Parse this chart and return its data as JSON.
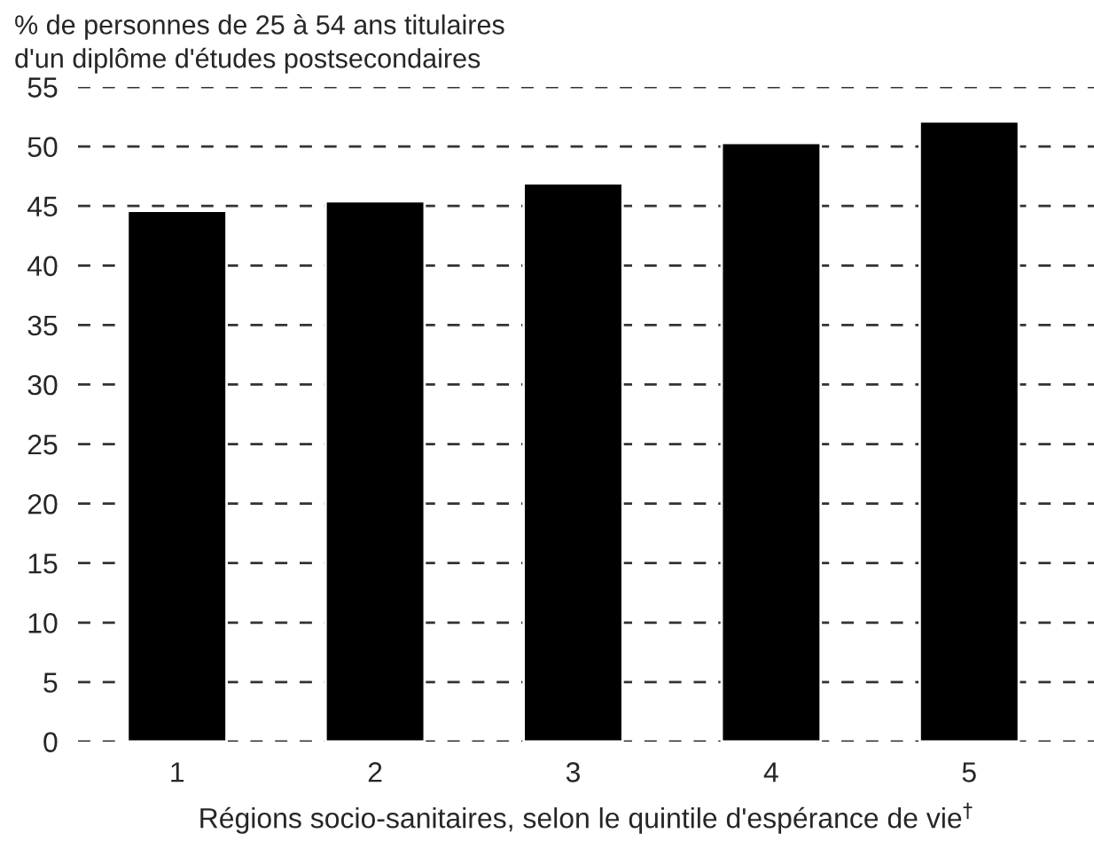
{
  "chart_data": {
    "type": "bar",
    "ylabel": "% de personnes de 25 à 54 ans titulaires\nd'un diplôme d'études postsecondaires",
    "xlabel": "Régions socio-sanitaires, selon le quintile d'espérance de vie$^{†}$",
    "categories": [
      "1",
      "2",
      "3",
      "4",
      "5"
    ],
    "values": [
      44.6,
      45.4,
      46.9,
      50.3,
      52.1
    ],
    "color": "#000000",
    "ylim": [
      0,
      55
    ],
    "yticks": [
      0,
      5,
      10,
      15,
      20,
      25,
      30,
      35,
      40,
      45,
      50,
      55
    ],
    "grid": "y",
    "line_style": "dashed"
  }
}
